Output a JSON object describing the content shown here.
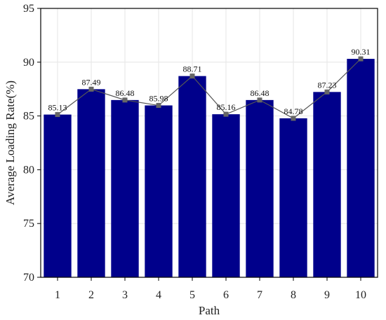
{
  "chart_data": {
    "type": "bar",
    "categories": [
      "1",
      "2",
      "3",
      "4",
      "5",
      "6",
      "7",
      "8",
      "9",
      "10"
    ],
    "values": [
      85.13,
      87.49,
      86.48,
      85.98,
      88.71,
      85.16,
      86.48,
      84.78,
      87.23,
      90.31
    ],
    "data_labels": [
      "85.13",
      "87.49",
      "86.48",
      "85.98",
      "88.71",
      "85.16",
      "86.48",
      "84.78",
      "87.23",
      "90.31"
    ],
    "overlay": "line-with-square-markers",
    "title": "",
    "xlabel": "Path",
    "ylabel": "Average Loading Rate(%)",
    "ylim": [
      70,
      95
    ],
    "yticks": [
      "70",
      "75",
      "80",
      "85",
      "90",
      "95"
    ],
    "grid": true,
    "legend": "none",
    "colors": {
      "bar": "#00008b",
      "line": "#555555",
      "marker": "#666666",
      "grid": "#e6e6e6",
      "axis": "#000000"
    }
  }
}
